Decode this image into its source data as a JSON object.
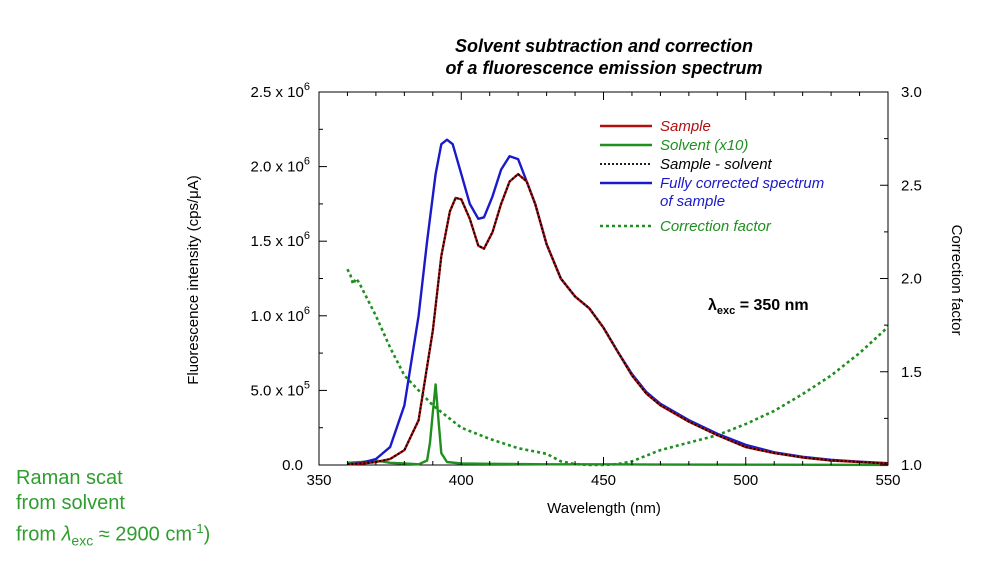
{
  "chart_data": {
    "type": "line",
    "title_lines": [
      "Solvent subtraction and correction",
      "of a fluorescence emission spectrum"
    ],
    "xlabel": "Wavelength (nm)",
    "ylabel": "Fluorescence intensity (cps/μA)",
    "y2label": "Correction factor",
    "xlim": [
      350,
      550
    ],
    "ylim": [
      0,
      2500000
    ],
    "y2lim": [
      1.0,
      3.0
    ],
    "x_ticks": [
      "350",
      "400",
      "450",
      "500",
      "550"
    ],
    "y_ticks": [
      {
        "mant": "0.0",
        "exp": ""
      },
      {
        "mant": "5.0 x 10",
        "exp": "5"
      },
      {
        "mant": "1.0 x 10",
        "exp": "6"
      },
      {
        "mant": "1.5 x 10",
        "exp": "6"
      },
      {
        "mant": "2.0 x 10",
        "exp": "6"
      },
      {
        "mant": "2.5 x 10",
        "exp": "6"
      }
    ],
    "y2_ticks": [
      "1.0",
      "1.5",
      "2.0",
      "2.5",
      "3.0"
    ],
    "annotation": {
      "lambda": "λ",
      "sub": "exc",
      "text": " = 350 nm"
    },
    "series": [
      {
        "name": "Sample",
        "color": "#b01010",
        "axis": "left",
        "style": "solid",
        "x": [
          360,
          365,
          370,
          375,
          380,
          385,
          390,
          393,
          396,
          398,
          400,
          403,
          406,
          408,
          411,
          414,
          417,
          420,
          423,
          426,
          430,
          435,
          440,
          445,
          450,
          455,
          460,
          465,
          470,
          480,
          490,
          500,
          510,
          520,
          530,
          540,
          550
        ],
        "y": [
          5000,
          10000,
          20000,
          40000,
          100000,
          300000,
          900000,
          1400000,
          1700000,
          1790000,
          1780000,
          1650000,
          1470000,
          1450000,
          1560000,
          1750000,
          1900000,
          1950000,
          1900000,
          1750000,
          1480000,
          1250000,
          1130000,
          1050000,
          920000,
          760000,
          600000,
          480000,
          400000,
          290000,
          200000,
          120000,
          80000,
          50000,
          30000,
          20000,
          10000
        ]
      },
      {
        "name": "Solvent (x10)",
        "color": "#1f8f1f",
        "axis": "left",
        "style": "solid",
        "x": [
          360,
          365,
          370,
          375,
          380,
          385,
          388,
          389,
          390,
          391,
          392,
          393,
          395,
          400,
          410,
          430,
          450,
          470,
          500,
          550
        ],
        "y": [
          15000,
          20000,
          30000,
          15000,
          10000,
          5000,
          30000,
          150000,
          350000,
          540000,
          300000,
          80000,
          20000,
          10000,
          8000,
          5000,
          5000,
          3000,
          2000,
          1000
        ]
      },
      {
        "name": "Sample - solvent",
        "color": "#000000",
        "axis": "left",
        "style": "dotted",
        "x": [
          360,
          365,
          370,
          375,
          380,
          385,
          390,
          393,
          396,
          398,
          400,
          403,
          406,
          408,
          411,
          414,
          417,
          420,
          423,
          426,
          430,
          435,
          440,
          445,
          450,
          455,
          460,
          465,
          470,
          480,
          490,
          500,
          510,
          520,
          530,
          540,
          550
        ],
        "y": [
          5000,
          10000,
          20000,
          40000,
          100000,
          300000,
          900000,
          1400000,
          1700000,
          1790000,
          1780000,
          1650000,
          1470000,
          1450000,
          1560000,
          1750000,
          1900000,
          1950000,
          1900000,
          1750000,
          1480000,
          1250000,
          1130000,
          1050000,
          920000,
          760000,
          600000,
          480000,
          400000,
          290000,
          200000,
          120000,
          80000,
          50000,
          30000,
          20000,
          10000
        ]
      },
      {
        "name": "Fully corrected spectrum of sample",
        "color": "#1a1acc",
        "axis": "left",
        "style": "solid",
        "x": [
          360,
          365,
          370,
          375,
          380,
          385,
          388,
          391,
          393,
          395,
          397,
          400,
          403,
          406,
          408,
          411,
          414,
          417,
          420,
          423,
          426,
          430,
          435,
          440,
          445,
          450,
          455,
          460,
          465,
          470,
          480,
          490,
          500,
          510,
          520,
          530,
          540,
          550
        ],
        "y": [
          5000,
          15000,
          40000,
          120000,
          400000,
          1000000,
          1500000,
          1950000,
          2150000,
          2180000,
          2150000,
          1950000,
          1750000,
          1650000,
          1660000,
          1800000,
          1980000,
          2070000,
          2050000,
          1900000,
          1750000,
          1480000,
          1250000,
          1130000,
          1050000,
          920000,
          760000,
          610000,
          490000,
          410000,
          300000,
          210000,
          135000,
          85000,
          55000,
          35000,
          22000,
          12000
        ]
      },
      {
        "name": "Correction factor",
        "color": "#1f8f1f",
        "axis": "right",
        "style": "dashed",
        "x": [
          360,
          361,
          362,
          363,
          364,
          365,
          370,
          375,
          380,
          385,
          390,
          395,
          400,
          410,
          420,
          430,
          435,
          440,
          445,
          450,
          455,
          460,
          465,
          470,
          480,
          490,
          500,
          510,
          520,
          530,
          540,
          550
        ],
        "y": [
          2.05,
          2.02,
          1.97,
          2.0,
          1.98,
          1.95,
          1.8,
          1.63,
          1.48,
          1.4,
          1.32,
          1.26,
          1.2,
          1.14,
          1.09,
          1.06,
          1.02,
          1.005,
          1.0,
          1.0,
          1.005,
          1.02,
          1.05,
          1.08,
          1.12,
          1.16,
          1.22,
          1.29,
          1.38,
          1.48,
          1.6,
          1.74
        ]
      }
    ],
    "raman_note": {
      "line1": "Raman scat",
      "line2": "from solvent",
      "line3_pre": "from ",
      "line3_lambda": "λ",
      "line3_sub": "exc",
      "line3_post": " ≈ 2900 cm",
      "line3_exp": "-1",
      "line3_end": ")"
    }
  }
}
